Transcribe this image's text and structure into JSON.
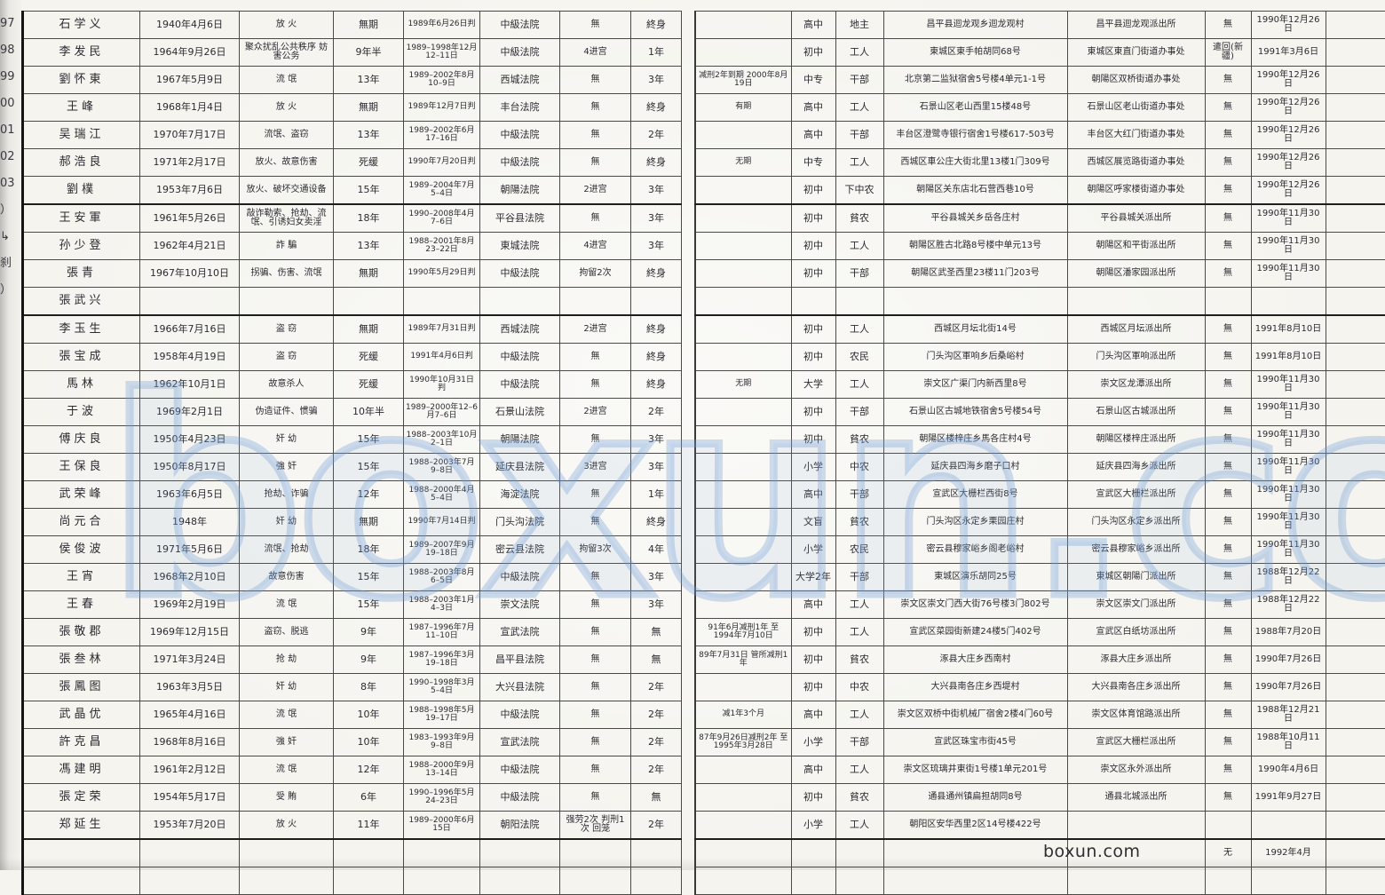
{
  "colors": {
    "ink": "#2b2b30",
    "watermark_blue": "#7da5dc"
  },
  "watermark": {
    "big": "boxun.com",
    "small": "boxun.com"
  },
  "left_page": {
    "rows": [
      {
        "no": "97",
        "name": "石学义",
        "birth": "1940年4月6日",
        "crime": "放 火",
        "term": "無期",
        "judged": "1989年6月26日判",
        "court": "中級法院",
        "record": "無",
        "rights": "終身"
      },
      {
        "no": "98",
        "name": "李发民",
        "birth": "1964年9月26日",
        "crime": "聚众扰乱公共秩序 妨害公务",
        "term": "9年半",
        "judged": "1989–1998年12月12–11日",
        "court": "中級法院",
        "record": "4进宫",
        "rights": "1年"
      },
      {
        "no": "99",
        "name": "劉怀東",
        "birth": "1967年5月9日",
        "crime": "流 氓",
        "term": "13年",
        "judged": "1989–2002年8月10–9日",
        "court": "西城法院",
        "record": "無",
        "rights": "3年"
      },
      {
        "no": "00",
        "name": "王峰",
        "birth": "1968年1月4日",
        "crime": "放 火",
        "term": "無期",
        "judged": "1989年12月7日判",
        "court": "丰台法院",
        "record": "無",
        "rights": "終身"
      },
      {
        "no": "01",
        "name": "吴瑞江",
        "birth": "1970年7月17日",
        "crime": "流氓、盗窃",
        "term": "13年",
        "judged": "1989–2002年6月17–16日",
        "court": "中級法院",
        "record": "無",
        "rights": "2年"
      },
      {
        "no": "02",
        "name": "郝浩良",
        "birth": "1971年2月17日",
        "crime": "放火、故意伤害",
        "term": "死缓",
        "judged": "1990年7月20日判",
        "court": "中級法院",
        "record": "無",
        "rights": "終身"
      },
      {
        "no": "03",
        "name": "劉樸",
        "birth": "1953年7月6日",
        "crime": "放火、破坏交通设备",
        "term": "15年",
        "judged": "1989–2004年7月5–4日",
        "court": "朝陽法院",
        "record": "2进宫",
        "rights": "3年"
      },
      {
        "no": "）",
        "name": "王安軍",
        "birth": "1961年5月26日",
        "crime": "敲诈勒索、抢劫、流氓、引诱妇女卖淫",
        "term": "18年",
        "judged": "1990–2008年4月7–6日",
        "court": "平谷县法院",
        "record": "無",
        "rights": "3年"
      },
      {
        "no": "↳",
        "name": "孙少登",
        "birth": "1962年4月21日",
        "crime": "詐 騙",
        "term": "13年",
        "judged": "1988–2001年8月23–22日",
        "court": "東城法院",
        "record": "4进宫",
        "rights": "3年"
      },
      {
        "no": "刹",
        "name": "張青",
        "birth": "1967年10月10日",
        "crime": "拐骗、伤害、流氓",
        "term": "無期",
        "judged": "1990年5月29日判",
        "court": "中級法院",
        "record": "拘留2次",
        "rights": "終身"
      },
      {
        "no": "）",
        "name": "張武兴",
        "birth": "",
        "crime": "",
        "term": "",
        "judged": "",
        "court": "",
        "record": "",
        "rights": ""
      },
      {
        "no": "",
        "name": "李玉生",
        "birth": "1966年7月16日",
        "crime": "盗 窃",
        "term": "無期",
        "judged": "1989年7月31日判",
        "court": "西城法院",
        "record": "2进宫",
        "rights": "終身"
      },
      {
        "no": "",
        "name": "張宝成",
        "birth": "1958年4月19日",
        "crime": "盗 窃",
        "term": "死缓",
        "judged": "1991年4月6日判",
        "court": "中級法院",
        "record": "無",
        "rights": "終身"
      },
      {
        "no": "",
        "name": "馬林",
        "birth": "1962年10月1日",
        "crime": "故意杀人",
        "term": "死缓",
        "judged": "1990年10月31日判",
        "court": "中級法院",
        "record": "無",
        "rights": "終身"
      },
      {
        "no": "",
        "name": "于波",
        "birth": "1969年2月1日",
        "crime": "伪造证件、惯骗",
        "term": "10年半",
        "judged": "1989–2000年12–6月7–6日",
        "court": "石景山法院",
        "record": "2进宫",
        "rights": "2年"
      },
      {
        "no": "",
        "name": "傅庆良",
        "birth": "1950年4月23日",
        "crime": "奸 幼",
        "term": "15年",
        "judged": "1988–2003年10月2–1日",
        "court": "朝陽法院",
        "record": "無",
        "rights": "3年"
      },
      {
        "no": "",
        "name": "王保良",
        "birth": "1950年8月17日",
        "crime": "強 奸",
        "term": "15年",
        "judged": "1988–2003年7月9–8日",
        "court": "延庆县法院",
        "record": "3进宫",
        "rights": "3年"
      },
      {
        "no": "",
        "name": "武荣峰",
        "birth": "1963年6月5日",
        "crime": "抢劫、诈骗",
        "term": "12年",
        "judged": "1988–2000年4月5–4日",
        "court": "海淀法院",
        "record": "無",
        "rights": "1年"
      },
      {
        "no": "",
        "name": "尚元合",
        "birth": "1948年",
        "crime": "奸 幼",
        "term": "無期",
        "judged": "1990年7月14日判",
        "court": "门头沟法院",
        "record": "無",
        "rights": "終身"
      },
      {
        "no": "",
        "name": "侯俊波",
        "birth": "1971年5月6日",
        "crime": "流氓、抢劫",
        "term": "18年",
        "judged": "1989–2007年9月19–18日",
        "court": "密云县法院",
        "record": "拘留3次",
        "rights": "4年"
      },
      {
        "no": "",
        "name": "王宵",
        "birth": "1968年2月10日",
        "crime": "故意伤害",
        "term": "15年",
        "judged": "1988–2003年8月6–5日",
        "court": "中級法院",
        "record": "無",
        "rights": "3年"
      },
      {
        "no": "",
        "name": "王春",
        "birth": "1969年2月19日",
        "crime": "流 氓",
        "term": "15年",
        "judged": "1988–2003年1月4–3日",
        "court": "崇文法院",
        "record": "無",
        "rights": "3年"
      },
      {
        "no": "",
        "name": "張敬郡",
        "birth": "1969年12月15日",
        "crime": "盗窃、脱逃",
        "term": "9年",
        "judged": "1987–1996年7月11–10日",
        "court": "宣武法院",
        "record": "無",
        "rights": "無"
      },
      {
        "no": "",
        "name": "張叁林",
        "birth": "1971年3月24日",
        "crime": "抢 劫",
        "term": "9年",
        "judged": "1987–1996年3月19–18日",
        "court": "昌平县法院",
        "record": "無",
        "rights": "無"
      },
      {
        "no": "",
        "name": "張鳳图",
        "birth": "1963年3月5日",
        "crime": "奸 幼",
        "term": "8年",
        "judged": "1990–1998年3月5–4日",
        "court": "大兴县法院",
        "record": "無",
        "rights": "2年"
      },
      {
        "no": "",
        "name": "武晶优",
        "birth": "1965年4月16日",
        "crime": "流 氓",
        "term": "10年",
        "judged": "1988–1998年5月19–17日",
        "court": "中級法院",
        "record": "無",
        "rights": "2年"
      },
      {
        "no": "",
        "name": "許克昌",
        "birth": "1968年8月16日",
        "crime": "強 奸",
        "term": "10年",
        "judged": "1983–1993年9月9–8日",
        "court": "宣武法院",
        "record": "無",
        "rights": "2年"
      },
      {
        "no": "",
        "name": "馮建明",
        "birth": "1961年2月12日",
        "crime": "流 氓",
        "term": "12年",
        "judged": "1988–2000年9月13–14日",
        "court": "中級法院",
        "record": "無",
        "rights": "2年"
      },
      {
        "no": "",
        "name": "張定荣",
        "birth": "1954年5月17日",
        "crime": "受 賄",
        "term": "6年",
        "judged": "1990–1996年5月24–23日",
        "court": "中級法院",
        "record": "無",
        "rights": "無"
      },
      {
        "no": "",
        "name": "郑延生",
        "birth": "1953年7月20日",
        "crime": "放 火",
        "term": "11年",
        "judged": "1989–2000年6月15日",
        "court": "朝阳法院",
        "record": "强劳2次 判刑1次 回笼",
        "rights": "2年"
      },
      {
        "no": "",
        "name": "",
        "birth": "",
        "crime": "",
        "term": "",
        "judged": "",
        "court": "",
        "record": "",
        "rights": ""
      },
      {
        "no": "",
        "name": "",
        "birth": "",
        "crime": "",
        "term": "",
        "judged": "",
        "court": "",
        "record": "",
        "rights": ""
      }
    ]
  },
  "right_page": {
    "rows": [
      {
        "note": "",
        "edu": "高中",
        "cls": "地主",
        "addr": "昌平县迴龙观乡迴龙观村",
        "station": "昌平县迴龙观派出所",
        "remark": "無",
        "date": "1990年12月26日"
      },
      {
        "note": "",
        "edu": "初中",
        "cls": "工人",
        "addr": "東城区東手帕胡同68号",
        "station": "東城区東直门街道办事处",
        "remark": "遣回(新疆)",
        "date": "1991年3月6日"
      },
      {
        "note": "减刑2年到期 2000年8月19日",
        "edu": "中专",
        "cls": "干部",
        "addr": "北京第二监狱宿舍5号楼4单元1-1号",
        "station": "朝陽区双桥街道办事处",
        "remark": "無",
        "date": "1990年12月26日"
      },
      {
        "note": "有期",
        "edu": "高中",
        "cls": "工人",
        "addr": "石景山区老山西里15楼48号",
        "station": "石景山区老山街道办事处",
        "remark": "無",
        "date": "1990年12月26日"
      },
      {
        "note": "",
        "edu": "高中",
        "cls": "干部",
        "addr": "丰台区澄鹭寺银行宿舍1号楼617-503号",
        "station": "丰台区大红门街道办事处",
        "remark": "無",
        "date": "1990年12月26日"
      },
      {
        "note": "无期",
        "edu": "中专",
        "cls": "工人",
        "addr": "西城区車公庄大街北里13楼1门309号",
        "station": "西城区展览路街道办事处",
        "remark": "無",
        "date": "1990年12月26日"
      },
      {
        "note": "",
        "edu": "初中",
        "cls": "下中农",
        "addr": "朝陽区关东店北石营西巷10号",
        "station": "朝陽区呼家楼街道办事处",
        "remark": "無",
        "date": "1990年12月26日"
      },
      {
        "note": "",
        "edu": "初中",
        "cls": "貧农",
        "addr": "平谷县城关乡岳各庄村",
        "station": "平谷县城关派出所",
        "remark": "無",
        "date": "1990年11月30日"
      },
      {
        "note": "",
        "edu": "初中",
        "cls": "工人",
        "addr": "朝陽区胜古北路8号楼中单元13号",
        "station": "朝陽区和平街派出所",
        "remark": "無",
        "date": "1990年11月30日"
      },
      {
        "note": "",
        "edu": "初中",
        "cls": "干部",
        "addr": "朝陽区武圣西里23楼11门203号",
        "station": "朝陽区潘家园派出所",
        "remark": "無",
        "date": "1990年11月30日"
      },
      {
        "note": "",
        "edu": "",
        "cls": "",
        "addr": "",
        "station": "",
        "remark": "",
        "date": ""
      },
      {
        "note": "",
        "edu": "初中",
        "cls": "工人",
        "addr": "西城区月坛北街14号",
        "station": "西城区月坛派出所",
        "remark": "無",
        "date": "1991年8月10日"
      },
      {
        "note": "",
        "edu": "初中",
        "cls": "农民",
        "addr": "门头沟区軍响乡后桑峪村",
        "station": "门头沟区軍响派出所",
        "remark": "無",
        "date": "1991年8月10日"
      },
      {
        "note": "无期",
        "edu": "大学",
        "cls": "工人",
        "addr": "崇文区广渠门内新西里8号",
        "station": "崇文区龙潭派出所",
        "remark": "無",
        "date": "1990年11月30日"
      },
      {
        "note": "",
        "edu": "初中",
        "cls": "干部",
        "addr": "石景山区古城地铁宿舍5号楼54号",
        "station": "石景山区古城派出所",
        "remark": "無",
        "date": "1990年11月30日"
      },
      {
        "note": "",
        "edu": "初中",
        "cls": "貧农",
        "addr": "朝陽区楼梓庄乡馬各庄村4号",
        "station": "朝陽区楼梓庄派出所",
        "remark": "無",
        "date": "1990年11月30日"
      },
      {
        "note": "",
        "edu": "小学",
        "cls": "中农",
        "addr": "延庆县四海乡磨子口村",
        "station": "延庆县四海乡派出所",
        "remark": "無",
        "date": "1990年11月30日"
      },
      {
        "note": "",
        "edu": "高中",
        "cls": "干部",
        "addr": "宣武区大栅栏西街8号",
        "station": "宣武区大栅栏派出所",
        "remark": "無",
        "date": "1990年11月30日"
      },
      {
        "note": "",
        "edu": "文盲",
        "cls": "貧农",
        "addr": "门头沟区永定乡栗园庄村",
        "station": "门头沟区永定乡派出所",
        "remark": "無",
        "date": "1990年11月30日"
      },
      {
        "note": "",
        "edu": "小学",
        "cls": "农民",
        "addr": "密云县穆家峪乡阁老峪村",
        "station": "密云县穆家峪乡派出所",
        "remark": "無",
        "date": "1990年11月30日"
      },
      {
        "note": "",
        "edu": "大学2年",
        "cls": "干部",
        "addr": "東城区演乐胡同25号",
        "station": "東城区朝陽门派出所",
        "remark": "無",
        "date": "1988年12月22日"
      },
      {
        "note": "",
        "edu": "高中",
        "cls": "工人",
        "addr": "崇文区崇文门西大街76号楼3门802号",
        "station": "崇文区崇文门派出所",
        "remark": "無",
        "date": "1988年12月22日"
      },
      {
        "note": "91年6月减刑1年 至1994年7月10日",
        "edu": "初中",
        "cls": "工人",
        "addr": "宣武区菜园街新建24楼5门402号",
        "station": "宣武区白纸坊派出所",
        "remark": "無",
        "date": "1988年7月20日"
      },
      {
        "note": "89年7月31日 管所减刑1年",
        "edu": "初中",
        "cls": "貧农",
        "addr": "涿县大庄乡西南村",
        "station": "涿县大庄乡派出所",
        "remark": "無",
        "date": "1990年7月26日"
      },
      {
        "note": "",
        "edu": "初中",
        "cls": "中农",
        "addr": "大兴县南各庄乡西堤村",
        "station": "大兴县南各庄乡派出所",
        "remark": "無",
        "date": "1990年7月26日"
      },
      {
        "note": "减1年3个月",
        "edu": "高中",
        "cls": "工人",
        "addr": "崇文区双桥中街机械厂宿舍2楼4门60号",
        "station": "崇文区体育馆路派出所",
        "remark": "無",
        "date": "1988年12月21日"
      },
      {
        "note": "87年9月26日减刑2年 至1995年3月28日",
        "edu": "小学",
        "cls": "干部",
        "addr": "宣武区珠宝市街45号",
        "station": "宣武区大栅栏派出所",
        "remark": "無",
        "date": "1988年10月11日"
      },
      {
        "note": "",
        "edu": "高中",
        "cls": "工人",
        "addr": "崇文区琉璃井東街1号楼1单元201号",
        "station": "崇文区永外派出所",
        "remark": "無",
        "date": "1990年4月6日"
      },
      {
        "note": "",
        "edu": "初中",
        "cls": "貧农",
        "addr": "通县通州镇扁担胡同8号",
        "station": "通县北城派出所",
        "remark": "無",
        "date": "1991年9月27日"
      },
      {
        "note": "",
        "edu": "小学",
        "cls": "工人",
        "addr": "朝阳区安华西里2区14号楼422号",
        "station": "",
        "remark": "",
        "date": ""
      },
      {
        "note": "",
        "edu": "",
        "cls": "",
        "addr": "",
        "station": "",
        "remark": "无",
        "date": "1992年4月"
      },
      {
        "note": "",
        "edu": "",
        "cls": "",
        "addr": "",
        "station": "",
        "remark": "",
        "date": ""
      }
    ]
  }
}
